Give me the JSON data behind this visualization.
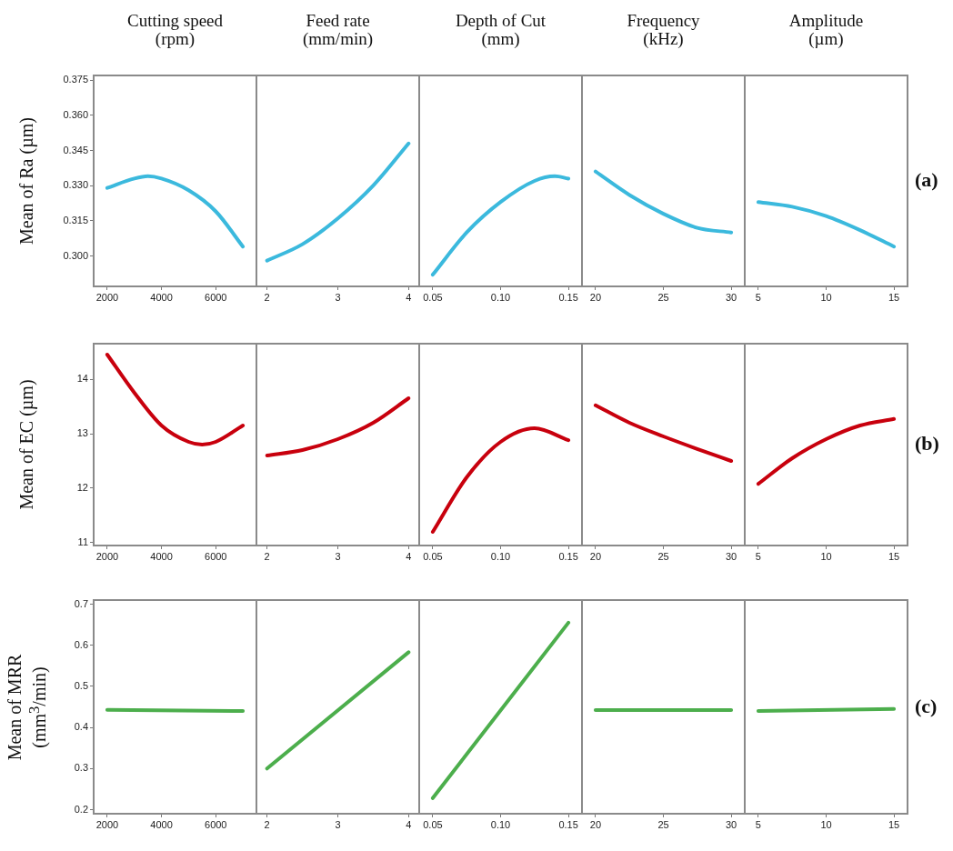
{
  "chart_data": [
    {
      "type": "line",
      "title": "Cutting  speed\n(rpm)",
      "ylabel": "Mean of Ra (µm)",
      "color": "#3bb9dd",
      "marker": "none",
      "x": [
        2000,
        3000,
        3500,
        4000,
        5000,
        6000,
        7000
      ],
      "values": [
        0.329,
        0.333,
        0.334,
        0.333,
        0.328,
        0.319,
        0.304
      ],
      "xlim": [
        1500,
        7500
      ],
      "xticks": [
        2000,
        4000,
        6000
      ],
      "ylim": [
        0.287,
        0.377
      ],
      "yticks": [
        {
          "value": 0.3,
          "label": "0.300"
        },
        {
          "value": 0.315,
          "label": "0.315"
        },
        {
          "value": 0.33,
          "label": "0.330"
        },
        {
          "value": 0.345,
          "label": "0.345"
        },
        {
          "value": 0.36,
          "label": "0.360"
        },
        {
          "value": 0.375,
          "label": "0.375"
        }
      ]
    },
    {
      "type": "line",
      "title": "Feed rate\n(mm/min)",
      "color": "#3bb9dd",
      "marker": "none",
      "x": [
        2,
        2.5,
        3,
        3.5,
        4
      ],
      "values": [
        0.298,
        0.305,
        0.316,
        0.33,
        0.348
      ],
      "xlim": [
        1.85,
        4.15
      ],
      "xticks": [
        2,
        3,
        4
      ],
      "ylim": [
        0.287,
        0.377
      ],
      "tick_labels": "x"
    },
    {
      "type": "line",
      "title": "Depth of Cut\n(mm)",
      "color": "#3bb9dd",
      "marker": "none",
      "x": [
        0.05,
        0.075,
        0.1,
        0.125,
        0.14,
        0.15
      ],
      "values": [
        0.292,
        0.31,
        0.323,
        0.332,
        0.334,
        0.333
      ],
      "xlim": [
        0.04,
        0.16
      ],
      "xticks": [
        {
          "value": 0.05,
          "label": "0.05"
        },
        {
          "value": 0.1,
          "label": "0.10"
        },
        {
          "value": 0.15,
          "label": "0.15"
        }
      ],
      "ylim": [
        0.287,
        0.377
      ],
      "tick_labels": "x"
    },
    {
      "type": "line",
      "title": "Frequency\n(kHz)",
      "color": "#3bb9dd",
      "marker": "none",
      "x": [
        20,
        22.5,
        25,
        27.5,
        30
      ],
      "values": [
        0.336,
        0.326,
        0.318,
        0.312,
        0.31
      ],
      "xlim": [
        19,
        31
      ],
      "xticks": [
        20,
        25,
        30
      ],
      "ylim": [
        0.287,
        0.377
      ],
      "tick_labels": "x"
    },
    {
      "type": "line",
      "title": "Amplitude\n(µm)",
      "annotations": [
        "(a)"
      ],
      "color": "#3bb9dd",
      "marker": "none",
      "x": [
        5,
        7.5,
        10,
        12.5,
        15
      ],
      "values": [
        0.323,
        0.321,
        0.317,
        0.311,
        0.304
      ],
      "xlim": [
        4,
        16
      ],
      "xticks": [
        5,
        10,
        15
      ],
      "ylim": [
        0.287,
        0.377
      ],
      "tick_labels": "x"
    },
    {
      "type": "line",
      "ylabel": "Mean of EC (µm)",
      "color": "#c8000d",
      "marker": "none",
      "x": [
        2000,
        3000,
        4000,
        5000,
        5500,
        6000,
        7000
      ],
      "values": [
        14.45,
        13.75,
        13.15,
        12.85,
        12.8,
        12.85,
        13.15
      ],
      "xlim": [
        1500,
        7500
      ],
      "xticks": [
        2000,
        4000,
        6000
      ],
      "ylim": [
        10.95,
        14.65
      ],
      "yticks": [
        11,
        12,
        13,
        14
      ]
    },
    {
      "type": "line",
      "color": "#c8000d",
      "marker": "none",
      "x": [
        2,
        2.5,
        3,
        3.5,
        4
      ],
      "values": [
        12.6,
        12.7,
        12.9,
        13.2,
        13.65
      ],
      "xlim": [
        1.85,
        4.15
      ],
      "xticks": [
        2,
        3,
        4
      ],
      "ylim": [
        10.95,
        14.65
      ],
      "tick_labels": "x"
    },
    {
      "type": "line",
      "color": "#c8000d",
      "marker": "none",
      "x": [
        0.05,
        0.075,
        0.1,
        0.125,
        0.15
      ],
      "values": [
        11.2,
        12.2,
        12.85,
        13.1,
        12.88
      ],
      "xlim": [
        0.04,
        0.16
      ],
      "xticks": [
        {
          "value": 0.05,
          "label": "0.05"
        },
        {
          "value": 0.1,
          "label": "0.10"
        },
        {
          "value": 0.15,
          "label": "0.15"
        }
      ],
      "ylim": [
        10.95,
        14.65
      ],
      "tick_labels": "x"
    },
    {
      "type": "line",
      "color": "#c8000d",
      "marker": "none",
      "x": [
        20,
        22.5,
        25,
        27.5,
        30
      ],
      "values": [
        13.52,
        13.2,
        12.95,
        12.72,
        12.5
      ],
      "xlim": [
        19,
        31
      ],
      "xticks": [
        20,
        25,
        30
      ],
      "ylim": [
        10.95,
        14.65
      ],
      "tick_labels": "x"
    },
    {
      "type": "line",
      "annotations": [
        "(b)"
      ],
      "color": "#c8000d",
      "marker": "none",
      "x": [
        5,
        7.5,
        10,
        12.5,
        15
      ],
      "values": [
        12.08,
        12.55,
        12.9,
        13.15,
        13.27
      ],
      "xlim": [
        4,
        16
      ],
      "xticks": [
        5,
        10,
        15
      ],
      "ylim": [
        10.95,
        14.65
      ],
      "tick_labels": "x"
    },
    {
      "type": "line",
      "ylabel": "Mean of MRR\n(mm$^{3}$/min)",
      "color": "#4cae4c",
      "marker": "none",
      "x": [
        2000,
        7000
      ],
      "values": [
        0.443,
        0.44
      ],
      "xlim": [
        1500,
        7500
      ],
      "xticks": [
        2000,
        4000,
        6000
      ],
      "ylim": [
        0.19,
        0.71
      ],
      "yticks": [
        0.2,
        0.3,
        0.4,
        0.5,
        0.6,
        0.7
      ]
    },
    {
      "type": "line",
      "color": "#4cae4c",
      "marker": "none",
      "x": [
        2,
        4
      ],
      "values": [
        0.3,
        0.583
      ],
      "xlim": [
        1.85,
        4.15
      ],
      "xticks": [
        2,
        3,
        4
      ],
      "ylim": [
        0.19,
        0.71
      ],
      "tick_labels": "x"
    },
    {
      "type": "line",
      "color": "#4cae4c",
      "marker": "none",
      "x": [
        0.05,
        0.15
      ],
      "values": [
        0.228,
        0.655
      ],
      "xlim": [
        0.04,
        0.16
      ],
      "xticks": [
        {
          "value": 0.05,
          "label": "0.05"
        },
        {
          "value": 0.1,
          "label": "0.10"
        },
        {
          "value": 0.15,
          "label": "0.15"
        }
      ],
      "ylim": [
        0.19,
        0.71
      ],
      "tick_labels": "x"
    },
    {
      "type": "line",
      "color": "#4cae4c",
      "marker": "none",
      "x": [
        20,
        30
      ],
      "values": [
        0.442,
        0.442
      ],
      "xlim": [
        19,
        31
      ],
      "xticks": [
        20,
        25,
        30
      ],
      "ylim": [
        0.19,
        0.71
      ],
      "tick_labels": "x"
    },
    {
      "type": "line",
      "annotations": [
        "(c)"
      ],
      "color": "#4cae4c",
      "marker": "none",
      "x": [
        5,
        15
      ],
      "values": [
        0.44,
        0.445
      ],
      "xlim": [
        4,
        16
      ],
      "xticks": [
        5,
        10,
        15
      ],
      "ylim": [
        0.19,
        0.71
      ],
      "tick_labels": "x"
    }
  ]
}
